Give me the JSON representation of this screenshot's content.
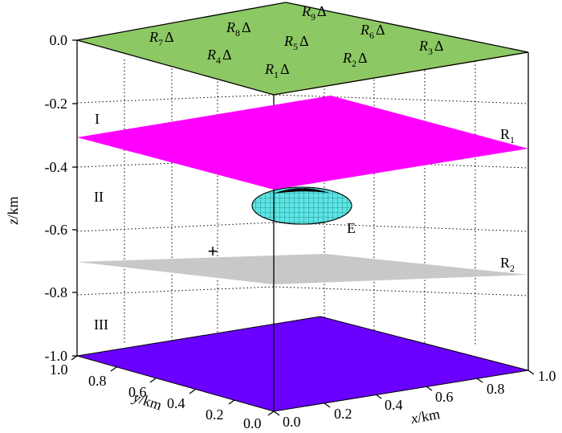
{
  "z_axis": {
    "label_var": "z",
    "label_unit": "/km",
    "ticks": [
      "0.0",
      "-0.2",
      "-0.4",
      "-0.6",
      "-0.8",
      "-1.0"
    ]
  },
  "y_axis": {
    "label_var": "y",
    "label_unit": "/km",
    "ticks": [
      "1.0",
      "0.8",
      "0.6",
      "0.4",
      "0.2",
      "0.0"
    ]
  },
  "x_axis": {
    "label_var": "x",
    "label_unit": "/km",
    "ticks": [
      "0.0",
      "0.2",
      "0.4",
      "0.6",
      "0.8",
      "1.0"
    ]
  },
  "layers": [
    {
      "label": "I"
    },
    {
      "label": "II"
    },
    {
      "label": "III"
    }
  ],
  "reflectors": [
    {
      "letter": "R",
      "sub": "1",
      "color": "#ff00ff",
      "depth_km": -0.25
    },
    {
      "letter": "R",
      "sub": "2",
      "color": "#c8c8c8",
      "depth_km": -0.7
    }
  ],
  "ellipsoid": {
    "label": "E",
    "color": "#40e0e0"
  },
  "source_marker": {
    "symbol": "+",
    "color": "#ff0000"
  },
  "surfaces": {
    "top_color": "#8cc864",
    "bottom_color": "#6a00ff"
  },
  "receivers": [
    {
      "letter": "R",
      "sub": "1",
      "mark": "Δ"
    },
    {
      "letter": "R",
      "sub": "2",
      "mark": "Δ"
    },
    {
      "letter": "R",
      "sub": "3",
      "mark": "Δ"
    },
    {
      "letter": "R",
      "sub": "4",
      "mark": "Δ"
    },
    {
      "letter": "R",
      "sub": "5",
      "mark": "Δ"
    },
    {
      "letter": "R",
      "sub": "6",
      "mark": "Δ"
    },
    {
      "letter": "R",
      "sub": "7",
      "mark": "Δ"
    },
    {
      "letter": "R",
      "sub": "8",
      "mark": "Δ"
    },
    {
      "letter": "R",
      "sub": "9",
      "mark": "Δ"
    }
  ]
}
